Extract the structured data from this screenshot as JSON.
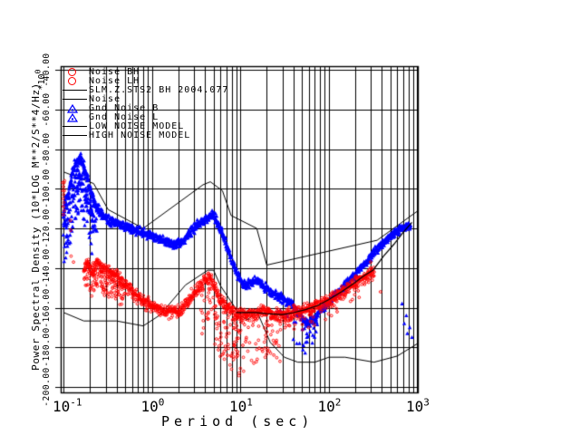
{
  "title": "SLM.Z.STS2 BH 2004.077",
  "colors": {
    "red": "#ff0000",
    "blue": "#0000ff",
    "line": "#000000",
    "background": "#ffffff"
  },
  "legend": {
    "items": [
      {
        "label": "Noise BH",
        "symbol": "circle",
        "color": "#ff0000"
      },
      {
        "label": "Noise LH",
        "symbol": "circle",
        "color": "#ff0000"
      },
      {
        "label": "SLM.Z.STS2 BH 2004.077",
        "symbol": "line",
        "color": "#000000"
      },
      {
        "label": "Noise",
        "symbol": "line",
        "color": "#000000"
      },
      {
        "label": "Gnd Noise B",
        "symbol": "triangle",
        "color": "#0000ff"
      },
      {
        "label": "Gnd Noise L",
        "symbol": "triangle",
        "color": "#0000ff"
      },
      {
        "label": "LOW NOISE MODEL",
        "symbol": "line",
        "color": "#000000"
      },
      {
        "label": "HIGH NOISE MODEL",
        "symbol": "line",
        "color": "#000000"
      }
    ]
  },
  "axes": {
    "x": {
      "label": "Period (sec)",
      "scale": "log",
      "ticks": [
        {
          "base": "10",
          "exp": "-1"
        },
        {
          "base": "10",
          "exp": "0"
        },
        {
          "base": "10",
          "exp": "1"
        },
        {
          "base": "10",
          "exp": "2"
        },
        {
          "base": "10",
          "exp": "3"
        }
      ]
    },
    "y": {
      "label": "Power Spectral Density (10*LOG M**2/S**4/Hz)",
      "multiplier": "*10",
      "multiplier_exp": "0",
      "ticks": [
        "-40.00",
        "-60.00",
        "-80.00",
        "-100.00",
        "-120.00",
        "-140.00",
        "-160.00",
        "-180.00",
        "-200.00"
      ]
    }
  },
  "chart_data": {
    "type": "scatter",
    "title": "SLM.Z.STS2 BH 2004.077",
    "xlabel": "Period (sec)",
    "ylabel": "Power Spectral Density (10*LOG M**2/S**4/Hz) *10^0",
    "xscale": "log",
    "xlim": [
      0.1,
      1000
    ],
    "ylim": [
      -200,
      -40
    ],
    "grid": true,
    "legend_position": "top-left-inside",
    "models": {
      "high_noise_model": [
        [
          0.1,
          -91.5
        ],
        [
          0.22,
          -97.4
        ],
        [
          0.32,
          -110.5
        ],
        [
          0.8,
          -120.0
        ],
        [
          3.8,
          -98.0
        ],
        [
          4.6,
          -96.5
        ],
        [
          6.3,
          -101.0
        ],
        [
          7.9,
          -113.5
        ],
        [
          15.4,
          -120.0
        ],
        [
          20.0,
          -138.5
        ],
        [
          354.8,
          -126.0
        ],
        [
          1000,
          -111.5
        ]
      ],
      "low_noise_model": [
        [
          0.1,
          -162.4
        ],
        [
          0.17,
          -166.7
        ],
        [
          0.4,
          -166.7
        ],
        [
          0.8,
          -169.2
        ],
        [
          1.24,
          -163.7
        ],
        [
          2.4,
          -148.6
        ],
        [
          4.3,
          -141.1
        ],
        [
          5.0,
          -141.1
        ],
        [
          6.0,
          -149.0
        ],
        [
          10.0,
          -163.8
        ],
        [
          12.0,
          -166.2
        ],
        [
          15.6,
          -162.1
        ],
        [
          21.9,
          -177.5
        ],
        [
          31.6,
          -185.0
        ],
        [
          45.0,
          -187.5
        ],
        [
          70.0,
          -187.5
        ],
        [
          101.0,
          -185.0
        ],
        [
          154.0,
          -185.0
        ],
        [
          328.0,
          -187.5
        ],
        [
          600.0,
          -184.4
        ],
        [
          1000,
          -178.3
        ]
      ]
    },
    "noise_line": [
      [
        9,
        -162.5
      ],
      [
        15,
        -162.5
      ],
      [
        20,
        -163
      ],
      [
        30,
        -163.5
      ],
      [
        40,
        -162.5
      ],
      [
        55,
        -161
      ],
      [
        75,
        -159
      ],
      [
        100,
        -156
      ],
      [
        140,
        -152
      ],
      [
        190,
        -148
      ],
      [
        250,
        -144
      ],
      [
        320,
        -141
      ],
      [
        420,
        -134
      ],
      [
        550,
        -128
      ],
      [
        700,
        -122
      ],
      [
        880,
        -117
      ]
    ],
    "series": [
      {
        "name": "Gnd Noise B",
        "color": "#0000ff",
        "marker": "triangle",
        "jitter": 2.2,
        "points": [
          [
            0.1,
            -112
          ],
          [
            0.105,
            -106
          ],
          [
            0.115,
            -102
          ],
          [
            0.125,
            -92
          ],
          [
            0.14,
            -86
          ],
          [
            0.16,
            -85
          ],
          [
            0.18,
            -92
          ],
          [
            0.2,
            -100
          ],
          [
            0.23,
            -108
          ],
          [
            0.27,
            -113
          ],
          [
            0.33,
            -116
          ],
          [
            0.42,
            -118
          ],
          [
            0.55,
            -120
          ],
          [
            0.75,
            -122
          ],
          [
            1.0,
            -124
          ],
          [
            1.4,
            -126
          ],
          [
            1.9,
            -128
          ],
          [
            2.4,
            -125
          ],
          [
            3.0,
            -120
          ],
          [
            3.8,
            -116
          ],
          [
            4.9,
            -113
          ],
          [
            5.6,
            -117
          ],
          [
            6.5,
            -124
          ],
          [
            8.0,
            -136
          ],
          [
            10.0,
            -146
          ],
          [
            11.5,
            -149
          ],
          [
            13.5,
            -147
          ],
          [
            16.0,
            -146
          ],
          [
            19.0,
            -150
          ],
          [
            24.0,
            -153
          ],
          [
            30.0,
            -155
          ],
          [
            38.0,
            -158
          ],
          [
            48.0,
            -164
          ],
          [
            58.0,
            -168
          ],
          [
            68.0,
            -166
          ],
          [
            80.0,
            -162
          ],
          [
            100.0,
            -157
          ],
          [
            130.0,
            -152
          ],
          [
            170.0,
            -147
          ],
          [
            220.0,
            -141
          ],
          [
            290.0,
            -135
          ],
          [
            380.0,
            -129
          ],
          [
            500.0,
            -124
          ],
          [
            650.0,
            -120
          ],
          [
            850.0,
            -118
          ]
        ],
        "sprays": [
          {
            "range": [
              0.1,
              0.24
            ],
            "prob": 0.85,
            "depth": [
              0,
              16
            ]
          },
          {
            "range": [
              0.1,
              0.22
            ],
            "prob": 0.6,
            "depth": [
              8,
              30
            ]
          },
          {
            "range": [
              25,
              75
            ],
            "prob": 0.15,
            "depth": [
              2,
              12
            ]
          },
          {
            "range": [
              40,
              60
            ],
            "prob": 0.08,
            "depth": [
              5,
              18
            ]
          }
        ],
        "outliers": [
          [
            720,
            -168
          ],
          [
            780,
            -173
          ],
          [
            830,
            -170
          ],
          [
            880,
            -175
          ],
          [
            760,
            -164
          ],
          [
            680,
            -158
          ],
          [
            40,
            -176
          ],
          [
            47,
            -178
          ]
        ]
      },
      {
        "name": "Noise BH",
        "color": "#ff0000",
        "marker": "circle",
        "jitter": 3.2,
        "points": [
          [
            0.17,
            -141
          ],
          [
            0.19,
            -137
          ],
          [
            0.21,
            -142
          ],
          [
            0.24,
            -137
          ],
          [
            0.28,
            -141
          ],
          [
            0.33,
            -142
          ],
          [
            0.4,
            -144
          ],
          [
            0.5,
            -148
          ],
          [
            0.62,
            -153
          ],
          [
            0.8,
            -157
          ],
          [
            1.0,
            -159
          ],
          [
            1.3,
            -161
          ],
          [
            1.7,
            -162
          ],
          [
            2.1,
            -161
          ],
          [
            2.6,
            -157
          ],
          [
            3.3,
            -151
          ],
          [
            4.0,
            -147
          ],
          [
            4.5,
            -145
          ],
          [
            5.0,
            -148
          ],
          [
            6.0,
            -156
          ],
          [
            7.5,
            -161
          ],
          [
            9.0,
            -163
          ],
          [
            11.0,
            -164
          ],
          [
            14.0,
            -163
          ],
          [
            18.0,
            -162
          ],
          [
            23.0,
            -163
          ],
          [
            29.0,
            -164
          ],
          [
            36.0,
            -163
          ],
          [
            46.0,
            -162
          ],
          [
            58.0,
            -161
          ],
          [
            75.0,
            -159
          ],
          [
            95.0,
            -157
          ],
          [
            125.0,
            -154
          ],
          [
            160.0,
            -151
          ],
          [
            210.0,
            -147
          ],
          [
            270.0,
            -144
          ],
          [
            330.0,
            -142
          ]
        ],
        "sprays": [
          {
            "range": [
              0.16,
              0.5
            ],
            "prob": 0.75,
            "depth": [
              0,
              13
            ]
          },
          {
            "range": [
              3.5,
              30
            ],
            "prob": 0.4,
            "depth": [
              2,
              26
            ]
          },
          {
            "range": [
              5,
              12
            ],
            "prob": 0.3,
            "depth": [
              10,
              32
            ]
          },
          {
            "range": [
              30,
              70
            ],
            "prob": 0.12,
            "depth": [
              2,
              10
            ]
          },
          {
            "range": [
              90,
              260
            ],
            "prob": 0.08,
            "depth": [
              2,
              9
            ]
          }
        ],
        "outliers": [
          [
            0.12,
            -116
          ],
          [
            0.121,
            -121
          ],
          [
            0.122,
            -134
          ],
          [
            0.13,
            -137
          ],
          [
            387,
            -152
          ],
          [
            300,
            -137
          ]
        ]
      },
      {
        "name": "Noise LH",
        "color": "#ff0000",
        "marker": "circle",
        "jitter": 0,
        "points": [],
        "sprays": [],
        "outliers": [
          [
            0.098,
            -97
          ],
          [
            0.0985,
            -101
          ],
          [
            0.099,
            -105
          ],
          [
            0.0995,
            -109
          ],
          [
            0.1,
            -113
          ],
          [
            0.1,
            -99
          ],
          [
            0.1005,
            -103
          ],
          [
            0.101,
            -107
          ],
          [
            0.1015,
            -97
          ],
          [
            0.102,
            -111
          ],
          [
            0.1025,
            -101
          ],
          [
            0.103,
            -96
          ]
        ]
      }
    ]
  }
}
